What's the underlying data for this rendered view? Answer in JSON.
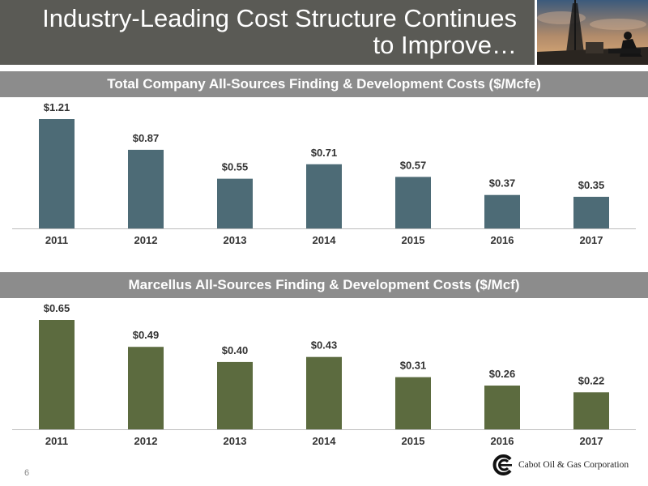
{
  "slide": {
    "title": "Industry-Leading Cost Structure Continues to Improve…",
    "page_number": "6",
    "company": "Cabot Oil & Gas Corporation"
  },
  "colors": {
    "title_bg": "#5a5a55",
    "header_bg": "#8c8c8c",
    "series1_bar": "#4d6b76",
    "series2_bar": "#5c6b3f"
  },
  "chart_data": [
    {
      "type": "bar",
      "title": "Total Company All-Sources Finding & Development Costs ($/Mcfe)",
      "categories": [
        "2011",
        "2012",
        "2013",
        "2014",
        "2015",
        "2016",
        "2017"
      ],
      "values": [
        1.21,
        0.87,
        0.55,
        0.71,
        0.57,
        0.37,
        0.35
      ],
      "labels": [
        "$1.21",
        "$0.87",
        "$0.55",
        "$0.71",
        "$0.57",
        "$0.37",
        "$0.35"
      ],
      "ylim": [
        0,
        1.21
      ],
      "grid": false
    },
    {
      "type": "bar",
      "title": "Marcellus All-Sources Finding & Development Costs ($/Mcf)",
      "categories": [
        "2011",
        "2012",
        "2013",
        "2014",
        "2015",
        "2016",
        "2017"
      ],
      "values": [
        0.65,
        0.49,
        0.4,
        0.43,
        0.31,
        0.26,
        0.22
      ],
      "labels": [
        "$0.65",
        "$0.49",
        "$0.40",
        "$0.43",
        "$0.31",
        "$0.26",
        "$0.22"
      ],
      "ylim": [
        0,
        0.65
      ],
      "grid": false
    }
  ]
}
